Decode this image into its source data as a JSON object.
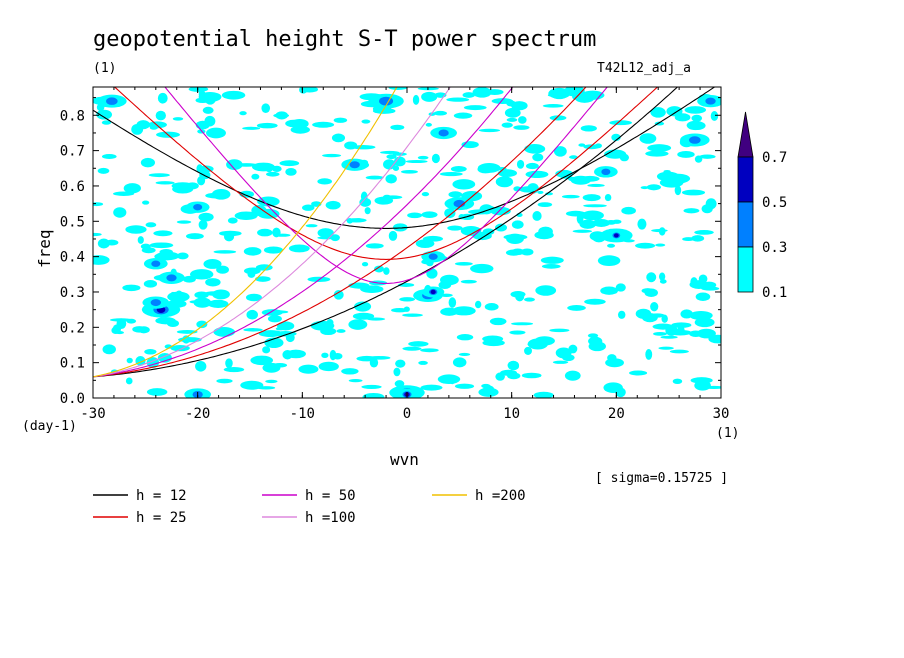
{
  "chart_data": {
    "type": "heatmap",
    "title": "geopotential height S-T power spectrum",
    "subtitle_left": "(1)",
    "subtitle_right": "T42L12_adj_a",
    "xlabel": "wvn",
    "ylabel": "freq",
    "x_unit": "(1)",
    "y_unit": "(day-1)",
    "sigma_note": "[ sigma=0.15725 ]",
    "xlim": [
      -30,
      30
    ],
    "ylim": [
      0,
      0.88
    ],
    "x_ticks": [
      "-30",
      "-20",
      "-10",
      "0",
      "10",
      "20",
      "30"
    ],
    "x_tick_values": [
      -30,
      -20,
      -10,
      0,
      10,
      20,
      30
    ],
    "y_ticks": [
      "0.0",
      "0.1",
      "0.2",
      "0.3",
      "0.4",
      "0.5",
      "0.6",
      "0.7",
      "0.8"
    ],
    "y_tick_values": [
      0,
      0.1,
      0.2,
      0.3,
      0.4,
      0.5,
      0.6,
      0.7,
      0.8
    ],
    "colorbar": {
      "levels": [
        "0.1",
        "0.3",
        "0.5",
        "0.7"
      ],
      "level_values": [
        0.1,
        0.3,
        0.5,
        0.7
      ],
      "colors": [
        "#00ffff",
        "#0080ff",
        "#0000c0",
        "#400080"
      ]
    },
    "series": [
      {
        "name": "h = 12",
        "h": 12,
        "color": "#000000"
      },
      {
        "name": "h = 25",
        "h": 25,
        "color": "#e00000"
      },
      {
        "name": "h = 50",
        "h": 50,
        "color": "#cc00cc"
      },
      {
        "name": "h =100",
        "h": 100,
        "color": "#dd88dd"
      },
      {
        "name": "h =200",
        "h": 200,
        "color": "#f0c000"
      }
    ],
    "blobs": [
      {
        "x": -28.2,
        "y": 0.84,
        "r": 0.6,
        "level": 1
      },
      {
        "x": -23.5,
        "y": 0.25,
        "r": 0.9,
        "level": 2
      },
      {
        "x": -24.0,
        "y": 0.27,
        "r": 0.5,
        "level": 1
      },
      {
        "x": -20.0,
        "y": 0.01,
        "r": 0.5,
        "level": 1
      },
      {
        "x": -22.5,
        "y": 0.34,
        "r": 0.5,
        "level": 1
      },
      {
        "x": -2.0,
        "y": 0.84,
        "r": 0.8,
        "level": 1
      },
      {
        "x": -5.0,
        "y": 0.66,
        "r": 0.5,
        "level": 1
      },
      {
        "x": 3.5,
        "y": 0.75,
        "r": 0.5,
        "level": 1
      },
      {
        "x": 5.0,
        "y": 0.55,
        "r": 0.6,
        "level": 1
      },
      {
        "x": 2.0,
        "y": 0.29,
        "r": 0.6,
        "level": 1
      },
      {
        "x": 2.5,
        "y": 0.3,
        "r": 0.35,
        "level": 2
      },
      {
        "x": 0.0,
        "y": 0.015,
        "r": 0.8,
        "level": 2
      },
      {
        "x": 0.0,
        "y": 0.01,
        "r": 0.4,
        "level": 3
      },
      {
        "x": 2.5,
        "y": 0.4,
        "r": 0.4,
        "level": 1
      },
      {
        "x": -24.0,
        "y": 0.38,
        "r": 0.4,
        "level": 1
      },
      {
        "x": 20.0,
        "y": 0.46,
        "r": 0.7,
        "level": 1
      },
      {
        "x": 20.0,
        "y": 0.46,
        "r": 0.3,
        "level": 2
      },
      {
        "x": 19.0,
        "y": 0.64,
        "r": 0.4,
        "level": 1
      },
      {
        "x": 27.5,
        "y": 0.73,
        "r": 0.6,
        "level": 1
      },
      {
        "x": 29.0,
        "y": 0.84,
        "r": 0.5,
        "level": 1
      },
      {
        "x": -20.0,
        "y": 0.54,
        "r": 0.4,
        "level": 1
      }
    ]
  }
}
